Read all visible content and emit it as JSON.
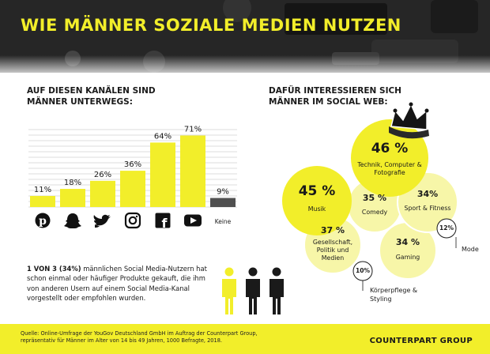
{
  "title": "WIE MÄNNER SOZIALE MEDIEN NUTZEN",
  "channels_section": {
    "title_line1": "AUF DIESEN KANÄLEN SIND",
    "title_line2": "MÄNNER UNTERWEGS:"
  },
  "interests_section": {
    "title_line1": "DAFÜR INTERESSIEREN SICH",
    "title_line2": "MÄNNER IM SOCIAL WEB:"
  },
  "chart_data": [
    {
      "type": "bar",
      "categories": [
        "Pinterest",
        "Snapchat",
        "Twitter",
        "Instagram",
        "Facebook",
        "YouTube",
        "Keine"
      ],
      "icons": [
        "pinterest-icon",
        "snapchat-icon",
        "twitter-icon",
        "instagram-icon",
        "facebook-icon",
        "youtube-icon",
        null
      ],
      "values": [
        11,
        18,
        26,
        36,
        64,
        71,
        9
      ],
      "value_labels": [
        "11%",
        "18%",
        "26%",
        "36%",
        "64%",
        "71%",
        "9%"
      ],
      "category_text": {
        "Keine": "Keine"
      },
      "colors": {
        "bar": "#f2ee2a",
        "none_bar": "#505050",
        "grid": "#d0d0d0"
      },
      "ylim": [
        0,
        80
      ],
      "grid": true
    },
    {
      "type": "bubble",
      "items": [
        {
          "label": "Technik, Computer & Fotografie",
          "value": 46,
          "pct": "46 %"
        },
        {
          "label": "Musik",
          "value": 45,
          "pct": "45 %"
        },
        {
          "label": "Comedy",
          "value": 35,
          "pct": "35 %"
        },
        {
          "label": "Sport & Fitness",
          "value": 34,
          "pct": "34%"
        },
        {
          "label": "Gesellschaft, Politik und Medien",
          "value": 37,
          "pct": "37 %"
        },
        {
          "label": "Gaming",
          "value": 34,
          "pct": "34 %"
        },
        {
          "label": "Mode",
          "value": 12,
          "pct": "12%"
        },
        {
          "label": "Körperpflege & Styling",
          "value": 10,
          "pct": "10%"
        }
      ],
      "colors": {
        "bright": "#f2ee2a",
        "pale": "#f7f6a8",
        "pale_border": "#ffffff",
        "small": "#ffffff"
      }
    }
  ],
  "stat": {
    "highlight": "1 VON 3 (34%)",
    "text": " männlichen Social Media-Nutzern hat schon einmal oder häufiger Produkte gekauft, die ihm von anderen Usern auf einem Social Media-Kanal vorgestellt oder empfohlen wurden.",
    "share": 0.34,
    "colors": {
      "highlight": "#f2ee2a",
      "other": "#1a1a1a"
    }
  },
  "footer": {
    "source_line1": "Quelle: Online-Umfrage der YouGov Deutschland GmbH im Auftrag der Counterpart Group,",
    "source_line2": "repräsentativ für Männer im Alter von 14 bis 49 Jahren, 1000 Befragte, 2018.",
    "brand": "COUNTERPART GROUP"
  }
}
